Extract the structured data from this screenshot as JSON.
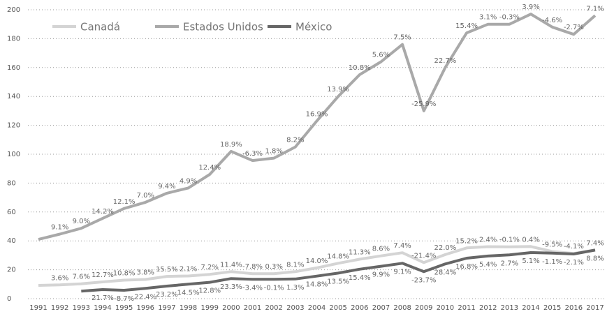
{
  "chart_data": {
    "type": "line",
    "categories": [
      "1991",
      "1992",
      "1993",
      "1994",
      "1995",
      "1996",
      "1997",
      "1998",
      "1999",
      "2000",
      "2001",
      "2002",
      "2003",
      "2004",
      "2005",
      "2006",
      "2007",
      "2008",
      "2009",
      "2010",
      "2011",
      "2012",
      "2013",
      "2014",
      "2015",
      "2016",
      "2017"
    ],
    "series": [
      {
        "name": "Canadá",
        "color": "#d4d4d4",
        "values": [
          9.2,
          9.5,
          10.3,
          11.6,
          12.8,
          13.3,
          15.4,
          15.7,
          16.8,
          18.7,
          17.3,
          17.3,
          18.7,
          21.3,
          24.5,
          27.3,
          29.6,
          31.8,
          25.0,
          30.5,
          35.1,
          36.0,
          35.9,
          36.1,
          32.6,
          31.3,
          33.6
        ],
        "value_labels": [
          null,
          "3.6%",
          "7.6%",
          "12.7%",
          "10.8%",
          "3.8%",
          "15.5%",
          "2.1%",
          "7.2%",
          "11.4%",
          "-7.8%",
          "0.3%",
          "8.1%",
          "14.0%",
          "14.8%",
          "11.3%",
          "8.6%",
          "7.4%",
          "-21.4%",
          "22.0%",
          "15.2%",
          "2.4%",
          "-0.1%",
          "0.4%",
          "-9.5%",
          "-4.1%",
          "7.4%"
        ]
      },
      {
        "name": "Estados Unidos",
        "color": "#a9a9a9",
        "values": [
          41.0,
          44.7,
          48.7,
          55.6,
          62.4,
          66.7,
          73.0,
          76.6,
          86.0,
          102.0,
          95.6,
          97.3,
          105.0,
          123.0,
          140.0,
          155.0,
          164.0,
          176.0,
          130.0,
          160.0,
          184.0,
          190.0,
          190.0,
          197.0,
          188.0,
          183.0,
          196.0
        ],
        "value_labels": [
          null,
          "9.1%",
          "9.0%",
          "14.2%",
          "12.1%",
          "7.0%",
          "9.4%",
          "4.9%",
          "12.4%",
          "18.9%",
          "-6.3%",
          "1.8%",
          "8.2%",
          "16.9%",
          "13.9%",
          "10.8%",
          "5.6%",
          "7.5%",
          "-25.9%",
          "22.7%",
          "15.4%",
          "3.1%",
          "-0.3%",
          "3.9%",
          "-4.6%",
          "-2.7%",
          "7.1%"
        ]
      },
      {
        "name": "México",
        "color": "#666666",
        "values": [
          null,
          null,
          5.2,
          6.3,
          5.8,
          7.1,
          8.7,
          10.0,
          11.3,
          13.9,
          13.4,
          13.4,
          13.6,
          15.6,
          17.7,
          20.4,
          22.4,
          24.5,
          18.7,
          24.0,
          28.0,
          29.5,
          30.3,
          31.9,
          31.5,
          30.9,
          33.6
        ],
        "value_labels": [
          null,
          null,
          null,
          "21.7%",
          "-8.7%",
          "22.4%",
          "23.2%",
          "14.5%",
          "12.8%",
          "23.3%",
          "-3.4%",
          "-0.1%",
          "1.3%",
          "14.8%",
          "13.5%",
          "15.4%",
          "9.9%",
          "9.1%",
          "-23.7%",
          "28.4%",
          "16.8%",
          "5.4%",
          "2.7%",
          "5.1%",
          "-1.1%",
          "-2.1%",
          "8.8%"
        ]
      }
    ],
    "ylim": [
      0,
      200
    ],
    "yticks": [
      0,
      20,
      40,
      60,
      80,
      100,
      120,
      140,
      160,
      180,
      200
    ],
    "grid": true,
    "legend": "top-left"
  }
}
